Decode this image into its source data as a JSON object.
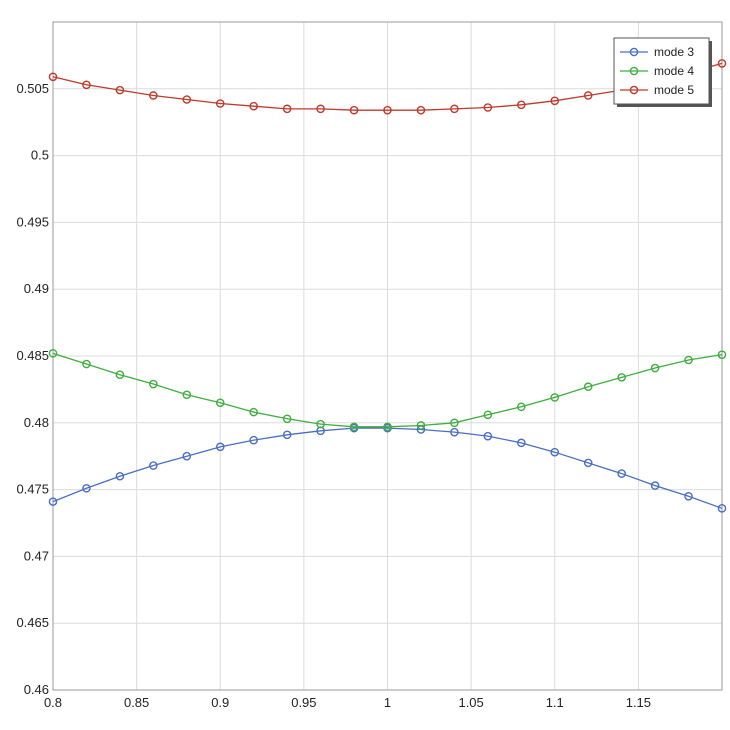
{
  "chart_data": {
    "type": "line",
    "title": "",
    "xlabel": "",
    "ylabel": "",
    "xlim": [
      0.8,
      1.2
    ],
    "ylim": [
      0.46,
      0.51
    ],
    "grid": true,
    "legend_position": "top-right",
    "x_ticks": [
      0.8,
      0.85,
      0.9,
      0.95,
      1,
      1.05,
      1.1,
      1.15
    ],
    "x_tick_labels": [
      "0.8",
      "0.85",
      "0.9",
      "0.95",
      "1",
      "1.05",
      "1.1",
      "1.15"
    ],
    "y_ticks": [
      0.46,
      0.465,
      0.47,
      0.475,
      0.48,
      0.485,
      0.49,
      0.495,
      0.5,
      0.505
    ],
    "y_tick_labels": [
      "0.46",
      "0.465",
      "0.47",
      "0.475",
      "0.48",
      "0.485",
      "0.49",
      "0.495",
      "0.5",
      "0.505"
    ],
    "x": [
      0.8,
      0.82,
      0.84,
      0.86,
      0.88,
      0.9,
      0.92,
      0.94,
      0.96,
      0.98,
      1.0,
      1.02,
      1.04,
      1.06,
      1.08,
      1.1,
      1.12,
      1.14,
      1.16,
      1.18,
      1.2
    ],
    "series": [
      {
        "name": "mode 3",
        "color": "#4a6ec4",
        "marker": "circle-open",
        "values": [
          0.4741,
          0.4751,
          0.476,
          0.4768,
          0.4775,
          0.4782,
          0.4787,
          0.4791,
          0.4794,
          0.4796,
          0.4796,
          0.4795,
          0.4793,
          0.479,
          0.4785,
          0.4778,
          0.477,
          0.4762,
          0.4753,
          0.4745,
          0.4736
        ]
      },
      {
        "name": "mode 4",
        "color": "#3fae3f",
        "marker": "circle-open",
        "values": [
          0.4852,
          0.4844,
          0.4836,
          0.4829,
          0.4821,
          0.4815,
          0.4808,
          0.4803,
          0.4799,
          0.4797,
          0.4797,
          0.4798,
          0.48,
          0.4806,
          0.4812,
          0.4819,
          0.4827,
          0.4834,
          0.4841,
          0.4847,
          0.4851
        ]
      },
      {
        "name": "mode 5",
        "color": "#c0392b",
        "marker": "circle-open",
        "values": [
          0.5059,
          0.5053,
          0.5049,
          0.5045,
          0.5042,
          0.5039,
          0.5037,
          0.5035,
          0.5035,
          0.5034,
          0.5034,
          0.5034,
          0.5035,
          0.5036,
          0.5038,
          0.5041,
          0.5045,
          0.5049,
          0.5054,
          0.5062,
          0.5069
        ]
      }
    ]
  }
}
